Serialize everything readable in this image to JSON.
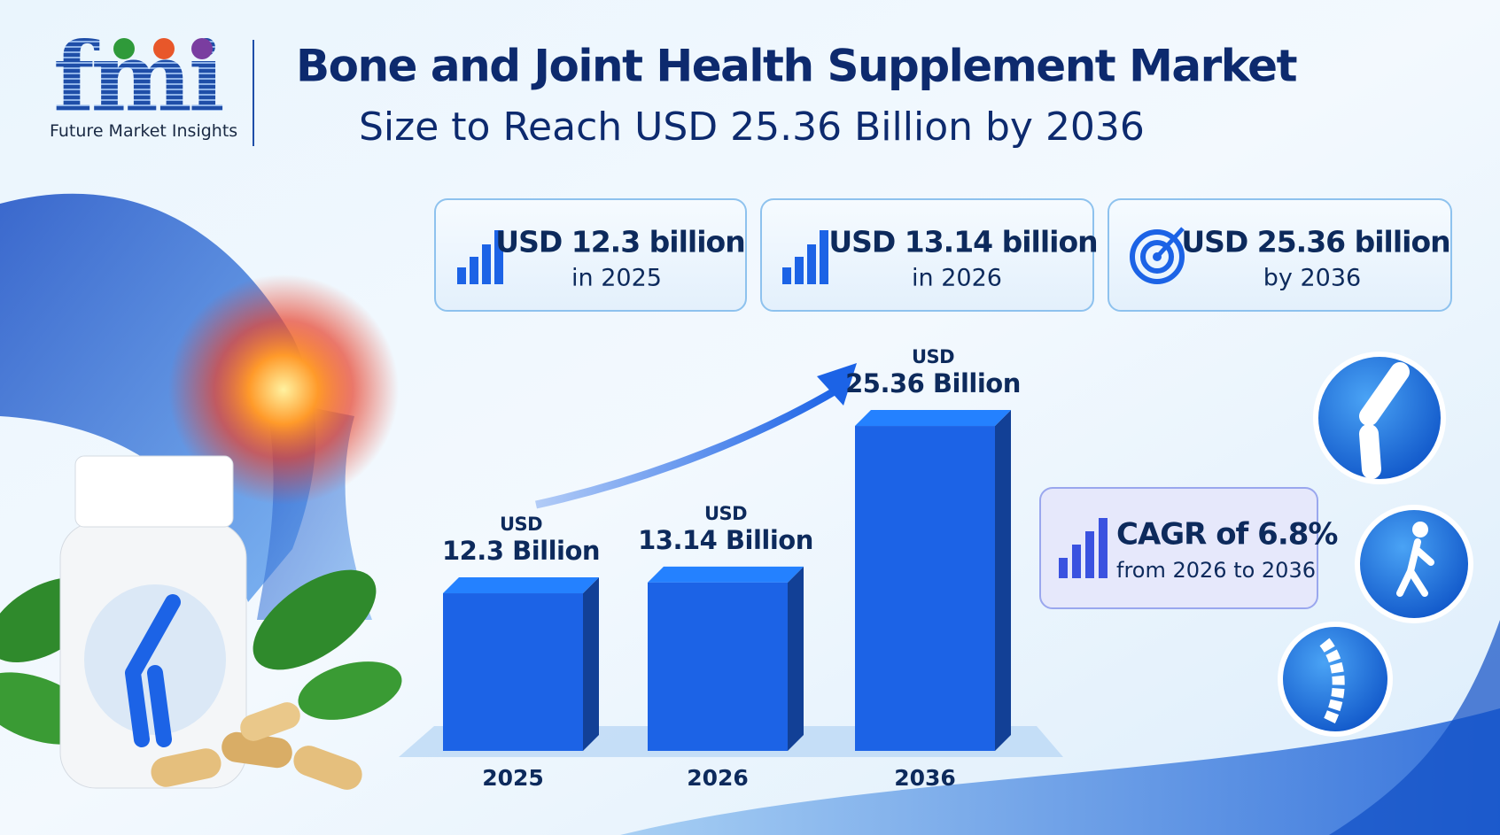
{
  "header": {
    "logo": "fmi",
    "logo_tagline": "Future Market Insights",
    "title": "Bone and Joint Health Supplement Market",
    "subtitle": "Size to Reach USD 25.36 Billion by 2036"
  },
  "stat_cards": [
    {
      "value": "USD 12.3 billion",
      "caption": "in 2025"
    },
    {
      "value": "USD 13.14 billion",
      "caption": "in 2026"
    },
    {
      "value": "USD 25.36 billion",
      "caption": "by 2036"
    }
  ],
  "cagr_card": {
    "value": "CAGR of 6.8%",
    "caption": "from 2026 to 2036"
  },
  "chart_data": {
    "type": "bar",
    "categories": [
      "2025",
      "2026",
      "2036"
    ],
    "values": [
      12.3,
      13.14,
      25.36
    ],
    "value_labels": [
      "USD\n12.3 Billion",
      "USD\n13.14 Billion",
      "USD\n25.36 Billion"
    ],
    "color": "#1c63e6"
  }
}
